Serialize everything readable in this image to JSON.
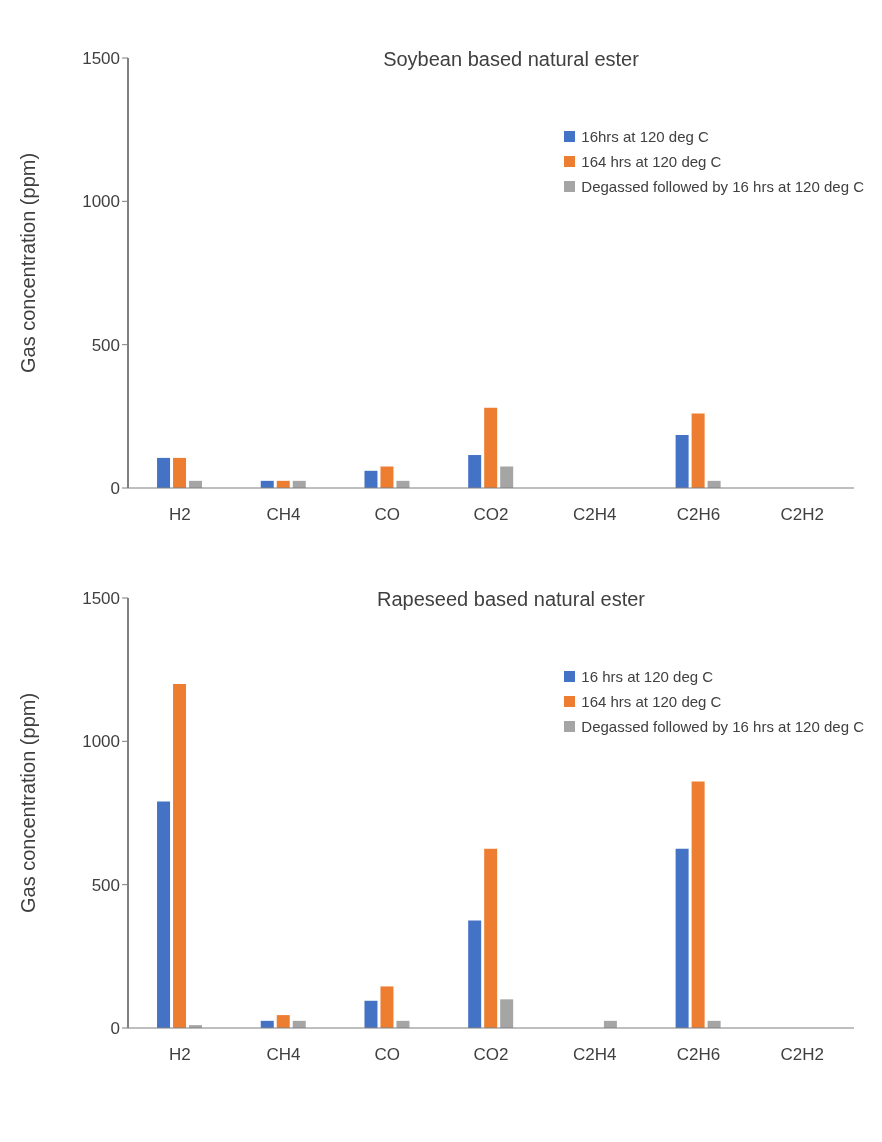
{
  "chart_data": [
    {
      "type": "bar",
      "title": "Soybean based natural ester",
      "ylabel": "Gas concentration (ppm)",
      "categories": [
        "H2",
        "CH4",
        "CO",
        "CO2",
        "C2H4",
        "C2H6",
        "C2H2"
      ],
      "series": [
        {
          "name": "16hrs at 120 deg C",
          "color": "#4472c4",
          "values": [
            105,
            25,
            60,
            115,
            0,
            185,
            0
          ]
        },
        {
          "name": "164 hrs at 120 deg C",
          "color": "#ed7d31",
          "values": [
            105,
            25,
            75,
            280,
            0,
            260,
            0
          ]
        },
        {
          "name": "Degassed followed by 16 hrs at 120 deg C",
          "color": "#a5a5a5",
          "values": [
            25,
            25,
            25,
            75,
            0,
            25,
            0
          ]
        }
      ],
      "ylim": [
        0,
        1500
      ],
      "yticks": [
        0,
        500,
        1000,
        1500
      ],
      "grid": false,
      "legend": "top right"
    },
    {
      "type": "bar",
      "title": "Rapeseed based natural ester",
      "ylabel": "Gas concentration (ppm)",
      "categories": [
        "H2",
        "CH4",
        "CO",
        "CO2",
        "C2H4",
        "C2H6",
        "C2H2"
      ],
      "series": [
        {
          "name": "16 hrs at 120 deg C",
          "color": "#4472c4",
          "values": [
            790,
            25,
            95,
            375,
            0,
            625,
            0
          ]
        },
        {
          "name": "164 hrs at 120 deg C",
          "color": "#ed7d31",
          "values": [
            1200,
            45,
            145,
            625,
            0,
            860,
            0
          ]
        },
        {
          "name": "Degassed followed by 16 hrs at 120 deg C",
          "color": "#a5a5a5",
          "values": [
            10,
            25,
            25,
            100,
            25,
            25,
            0
          ]
        }
      ],
      "ylim": [
        0,
        1500
      ],
      "yticks": [
        0,
        500,
        1000,
        1500
      ],
      "grid": false,
      "legend": "top right"
    }
  ]
}
